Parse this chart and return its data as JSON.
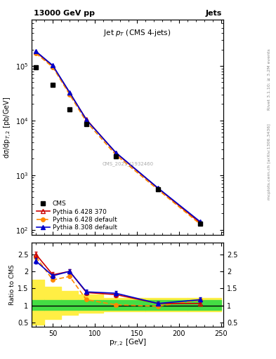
{
  "title_top": "13000 GeV pp",
  "title_right": "Jets",
  "plot_title": "Jet $p_T$ (CMS 4-jets)",
  "ylabel_main": "dσ/dp$_{T,2}$ [pb/GeV]",
  "ylabel_ratio": "Ratio to CMS",
  "xlabel": "p$_{T,2}$ [GeV]",
  "right_label_top": "Rivet 3.1.10; ≥ 3.2M events",
  "right_label_bot": "mcplots.cern.ch [arXiv:1306.3436]",
  "cms_label": "CMS_2021_I1932460",
  "cms_x": [
    30,
    50,
    70,
    90,
    125,
    175,
    225
  ],
  "cms_y": [
    95000,
    45000,
    16000,
    8500,
    2200,
    550,
    130
  ],
  "py6_370_x": [
    30,
    50,
    70,
    90,
    125,
    175,
    225
  ],
  "py6_370_y": [
    180000,
    100000,
    32000,
    10500,
    2550,
    575,
    135
  ],
  "py6_def_x": [
    30,
    50,
    70,
    90,
    125,
    175,
    225
  ],
  "py6_def_y": [
    170000,
    95000,
    30000,
    9500,
    2350,
    545,
    128
  ],
  "py8_def_x": [
    30,
    50,
    70,
    90,
    125,
    175,
    225
  ],
  "py8_def_y": [
    185000,
    102000,
    33000,
    10300,
    2600,
    585,
    142
  ],
  "ratio_py6_370": [
    2.5,
    1.9,
    2.0,
    1.38,
    1.32,
    1.06,
    1.06
  ],
  "ratio_py6_def": [
    2.42,
    1.75,
    1.85,
    1.17,
    1.02,
    0.98,
    1.16
  ],
  "ratio_py8_def": [
    2.3,
    1.87,
    2.0,
    1.4,
    1.36,
    1.06,
    1.17
  ],
  "ratio_py6_370_err": [
    0.08,
    0.07,
    0.07,
    0.07,
    0.07,
    0.05,
    0.07
  ],
  "ratio_py8_def_err": [
    0.08,
    0.07,
    0.07,
    0.07,
    0.07,
    0.05,
    0.07
  ],
  "band_edges": [
    25,
    40,
    60,
    80,
    110,
    160,
    210,
    250
  ],
  "green_upper": [
    1.15,
    1.15,
    1.15,
    1.15,
    1.15,
    1.15,
    1.15
  ],
  "green_lower": [
    0.87,
    0.87,
    0.87,
    0.87,
    0.87,
    0.87,
    0.87
  ],
  "yellow_upper": [
    1.75,
    1.55,
    1.42,
    1.32,
    1.23,
    1.22,
    1.22
  ],
  "yellow_lower": [
    0.44,
    0.6,
    0.72,
    0.79,
    0.83,
    0.83,
    0.83
  ],
  "color_py6_370": "#cc0000",
  "color_py6_def": "#ff8800",
  "color_py8_def": "#0000cc",
  "color_cms": "#000000",
  "color_green": "#44dd44",
  "color_yellow": "#ffee44",
  "xlim": [
    25,
    253
  ],
  "ylim_main": [
    80,
    700000
  ],
  "ylim_ratio": [
    0.38,
    2.85
  ],
  "yticks_ratio": [
    0.5,
    1.0,
    1.5,
    2.0,
    2.5
  ],
  "ytick_labels_ratio": [
    "0.5",
    "1",
    "1.5",
    "2",
    "2.5"
  ]
}
